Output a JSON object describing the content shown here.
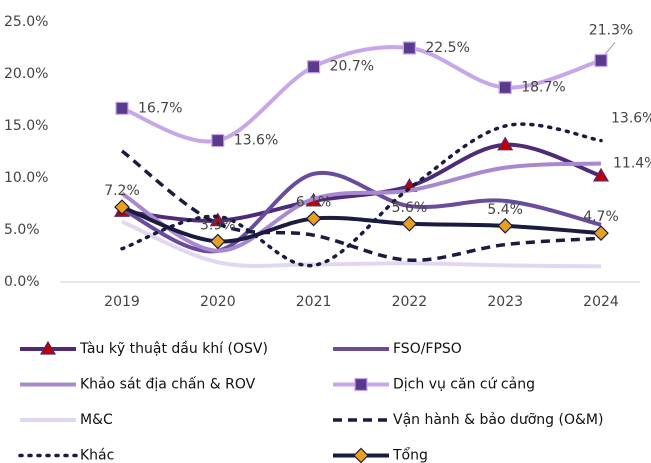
{
  "chart_data": {
    "type": "line",
    "categories": [
      "2019",
      "2020",
      "2021",
      "2022",
      "2023",
      "2024"
    ],
    "ylim": [
      0,
      25
    ],
    "yticks": [
      {
        "value": 0,
        "label": "0.0%"
      },
      {
        "value": 5,
        "label": "5.0%"
      },
      {
        "value": 10,
        "label": "10.0%"
      },
      {
        "value": 15,
        "label": "15.0%"
      },
      {
        "value": 20,
        "label": "20.0%"
      },
      {
        "value": 25,
        "label": "25.0%"
      }
    ],
    "grid": false,
    "series": [
      {
        "name": "Tàu kỹ thuật dầu khí (OSV)",
        "color": "#4e2b78",
        "marker": "triangle",
        "marker_color": "#c00000",
        "values": [
          6.8,
          5.9,
          7.8,
          9.2,
          13.2,
          10.2
        ]
      },
      {
        "name": "FSO/FPSO",
        "color": "#6a4c9c",
        "values": [
          7.0,
          3.0,
          10.4,
          7.3,
          7.8,
          5.5
        ]
      },
      {
        "name": "Khảo sát địa chấn & ROV",
        "color": "#a889cf",
        "values": [
          8.5,
          3.0,
          8.0,
          8.8,
          11.0,
          11.4
        ],
        "value_labels": [
          null,
          null,
          null,
          null,
          null,
          "11.4%"
        ]
      },
      {
        "name": "Dịch vụ căn cứ cảng",
        "color": "#c7a7ea",
        "marker": "square",
        "marker_color": "#5a3a8c",
        "values": [
          16.7,
          13.6,
          20.7,
          22.5,
          18.7,
          21.3
        ],
        "value_labels": [
          "16.7%",
          "13.6%",
          "20.7%",
          "22.5%",
          "18.7%",
          "21.3%"
        ]
      },
      {
        "name": "M&C",
        "color": "#e2d7f2",
        "values": [
          5.8,
          1.9,
          1.7,
          1.8,
          1.6,
          1.5
        ]
      },
      {
        "name": "Vận hành & bảo dưỡng (O&M)",
        "color": "#1b1a3f",
        "dash": "dashed",
        "values": [
          12.6,
          5.6,
          4.5,
          2.1,
          3.6,
          4.2
        ]
      },
      {
        "name": "Khác",
        "color": "#1b1a3f",
        "dash": "dotted",
        "values": [
          3.2,
          6.3,
          1.6,
          9.0,
          15.0,
          13.6
        ],
        "value_labels": [
          null,
          null,
          null,
          null,
          null,
          "13.6%"
        ]
      },
      {
        "name": "Tổng",
        "color": "#1b1a3f",
        "marker": "diamond",
        "marker_color": "#e8a020",
        "values": [
          7.2,
          3.9,
          6.1,
          5.6,
          5.4,
          4.7
        ],
        "value_labels": [
          "7.2%",
          "3.9%",
          "6.1%",
          "5.6%",
          "5.4%",
          "4.7%"
        ]
      }
    ]
  }
}
